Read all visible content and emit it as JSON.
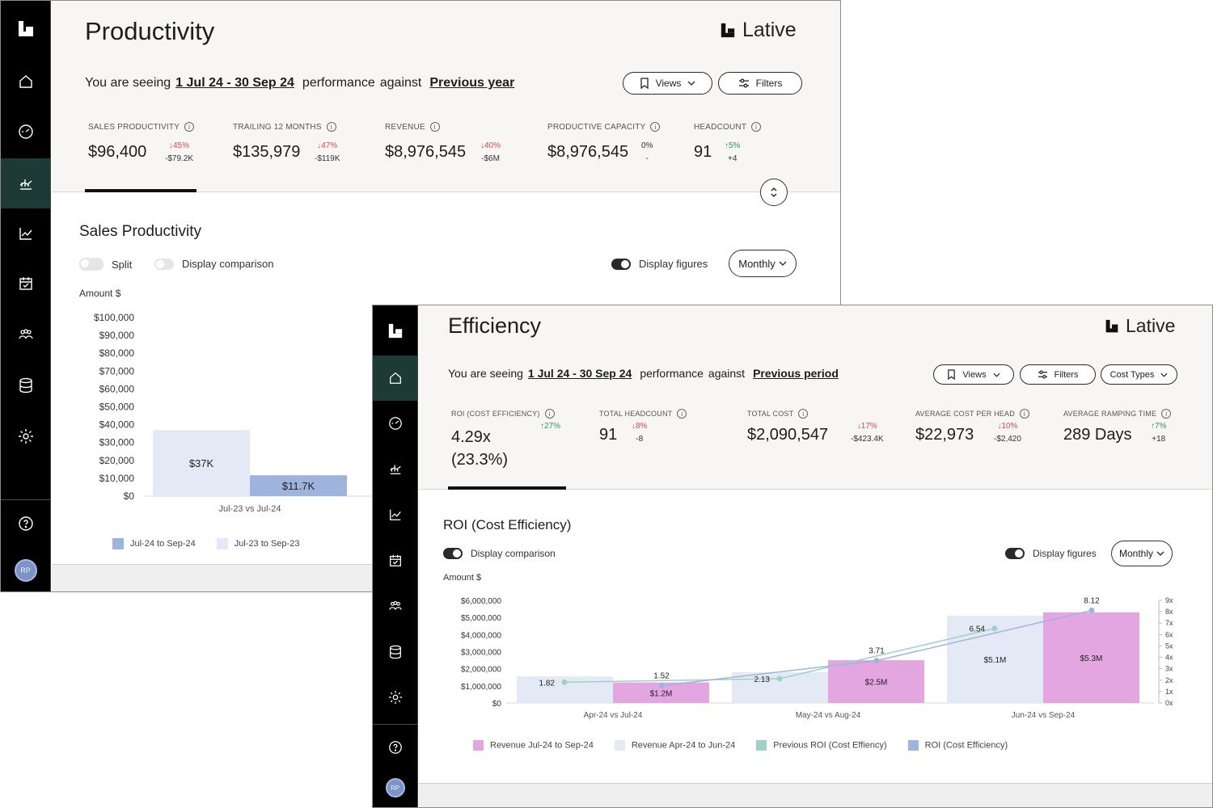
{
  "user": {
    "initials": "RP"
  },
  "productivity": {
    "title": "Productivity",
    "brand": "Lative",
    "seeing": {
      "prefix": "You are seeing",
      "range": "1 Jul 24 - 30 Sep 24",
      "middle": "performance",
      "against": "against",
      "compare": "Previous year"
    },
    "buttons": {
      "views": "Views",
      "filters": "Filters"
    },
    "metrics": [
      {
        "label": "SALES PRODUCTIVITY",
        "value": "$96,400",
        "pct": "45%",
        "abs": "-$79.2K",
        "dir": "down"
      },
      {
        "label": "TRAILING 12 MONTHS",
        "value": "$135,979",
        "pct": "47%",
        "abs": "-$119K",
        "dir": "down"
      },
      {
        "label": "REVENUE",
        "value": "$8,976,545",
        "pct": "40%",
        "abs": "-$6M",
        "dir": "down"
      },
      {
        "label": "PRODUCTIVE CAPACITY",
        "value": "$8,976,545",
        "pct": "0%",
        "abs": "-",
        "dir": "none"
      },
      {
        "label": "HEADCOUNT",
        "value": "91",
        "pct": "5%",
        "abs": "+4",
        "dir": "up"
      }
    ],
    "section_title": "Sales Productivity",
    "toggles": {
      "split": "Split",
      "comparison": "Display comparison",
      "figures": "Display figures"
    },
    "period": "Monthly",
    "amount_label": "Amount $",
    "legend": [
      "Jul-24 to Sep-24",
      "Jul-23 to Sep-23"
    ],
    "chart_data": {
      "type": "bar",
      "title": "Sales Productivity",
      "ylabel": "Amount $",
      "ylim": [
        0,
        100000
      ],
      "yticks": [
        "$100,000",
        "$90,000",
        "$80,000",
        "$70,000",
        "$60,000",
        "$50,000",
        "$40,000",
        "$30,000",
        "$20,000",
        "$10,000",
        "$0"
      ],
      "categories": [
        "Jul-23  vs  Jul-24"
      ],
      "series": [
        {
          "name": "Jul-23 to Sep-23",
          "values": [
            37000
          ],
          "labels": [
            "$37K"
          ],
          "color": "#e3eaf5"
        },
        {
          "name": "Jul-24 to Sep-24",
          "values": [
            11700
          ],
          "labels": [
            "$11.7K"
          ],
          "color": "#9fb4dd"
        }
      ]
    }
  },
  "efficiency": {
    "title": "Efficiency",
    "brand": "Lative",
    "seeing": {
      "prefix": "You are seeing",
      "range": "1 Jul 24 - 30 Sep 24",
      "middle": "performance",
      "against": "against",
      "compare": "Previous period"
    },
    "buttons": {
      "views": "Views",
      "filters": "Filters",
      "cost_types": "Cost Types"
    },
    "metrics": [
      {
        "label": "ROI (COST EFFICIENCY)",
        "value": "4.29x",
        "value2": "(23.3%)",
        "pct": "27%",
        "abs": "",
        "dir": "up"
      },
      {
        "label": "TOTAL HEADCOUNT",
        "value": "91",
        "pct": "8%",
        "abs": "-8",
        "dir": "down"
      },
      {
        "label": "TOTAL COST",
        "value": "$2,090,547",
        "pct": "17%",
        "abs": "-$423.4K",
        "dir": "down"
      },
      {
        "label": "AVERAGE COST PER HEAD",
        "value": "$22,973",
        "pct": "10%",
        "abs": "-$2,420",
        "dir": "down"
      },
      {
        "label": "AVERAGE RAMPING TIME",
        "value": "289 Days",
        "pct": "7%",
        "abs": "+18",
        "dir": "up"
      }
    ],
    "section_title": "ROI (Cost Efficiency)",
    "toggles": {
      "comparison": "Display comparison",
      "figures": "Display figures"
    },
    "period": "Monthly",
    "amount_label": "Amount $",
    "legend": [
      {
        "label": "Revenue Jul-24 to Sep-24",
        "color": "#e4a6e0"
      },
      {
        "label": "Revenue Apr-24 to Jun-24",
        "color": "#e3eaf5"
      },
      {
        "label": "Previous ROI (Cost Effiency)",
        "color": "#9fd1c4"
      },
      {
        "label": "ROI (Cost Efficiency)",
        "color": "#9fb4dd"
      }
    ],
    "chart_data": {
      "type": "bar+line",
      "title": "ROI (Cost Efficiency)",
      "ylabel": "Amount $",
      "ylim": [
        0,
        6000000
      ],
      "y2lim": [
        0,
        9
      ],
      "yticks": [
        "$6,000,000",
        "$5,000,000",
        "$4,000,000",
        "$3,000,000",
        "$2,000,000",
        "$1,000,000",
        "$0"
      ],
      "y2ticks": [
        "9x",
        "8x",
        "7x",
        "6x",
        "5x",
        "4x",
        "3x",
        "2x",
        "1x",
        "0x"
      ],
      "categories": [
        "Apr-24  vs  Jul-24",
        "May-24  vs  Aug-24",
        "Jun-24  vs  Sep-24"
      ],
      "series": [
        {
          "name": "Revenue Apr-24 to Jun-24",
          "values": [
            1550000,
            1800000,
            5100000
          ],
          "labels": [
            "",
            "",
            "$5.1M"
          ],
          "color": "#e3eaf5"
        },
        {
          "name": "Revenue Jul-24 to Sep-24",
          "values": [
            1200000,
            2500000,
            5300000
          ],
          "labels": [
            "$1.2M",
            "$2.5M",
            "$5.3M"
          ],
          "color": "#e4a6e0"
        }
      ],
      "lines": [
        {
          "name": "Previous ROI (Cost Effiency)",
          "values": [
            1.82,
            2.13,
            6.54
          ],
          "labels": [
            "1.82",
            "2.13",
            "6.54"
          ],
          "color": "#9fd1c4"
        },
        {
          "name": "ROI (Cost Efficiency)",
          "values": [
            1.52,
            3.71,
            8.12
          ],
          "labels": [
            "1.52",
            "3.71",
            "8.12"
          ],
          "color": "#9fb4dd"
        }
      ]
    }
  }
}
